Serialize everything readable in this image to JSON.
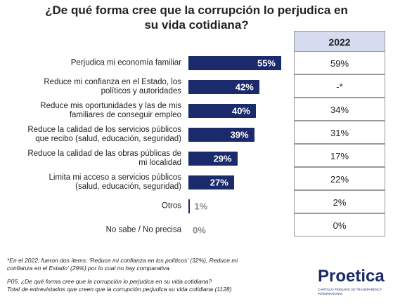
{
  "chart_data": {
    "type": "bar",
    "orientation": "horizontal",
    "title": "¿De qué forma cree que la corrupción lo perjudica en\nsu vida cotidiana?",
    "categories": [
      "Perjudica mi economía familiar",
      "Reduce mi confianza en el Estado, los\npolíticos y autoridades",
      "Reduce mis oportunidades y las de mis\nfamiliares de conseguir empleo",
      "Reduce la calidad de los servicios públicos\nque recibo (salud, educación, seguridad)",
      "Reduce la calidad de las obras públicas de\nmi localidad",
      "Limita mi acceso a servicios públicos\n(salud, educación, seguridad)",
      "Otros",
      "No sabe / No precisa"
    ],
    "values": [
      55,
      42,
      40,
      39,
      29,
      27,
      1,
      0
    ],
    "value_labels": [
      "55%",
      "42%",
      "40%",
      "39%",
      "29%",
      "27%",
      "1%",
      "0%"
    ],
    "color": "#1b2a6b"
  },
  "table": {
    "header": "2022",
    "cells": [
      "59%",
      "-*",
      "34%",
      "31%",
      "17%",
      "22%",
      "2%",
      "0%"
    ]
  },
  "notes": [
    "*En el 2022, fueron dos ítems: 'Reduce mi confianza en los políticos' (32%), Reduce mi\nconfianza en el Estado' (29%) por lo cual no hay comparativa.",
    "P05. ¿De qué forma cree que la corrupción lo perjudica en su vida cotidiana?\nTotal de entrevistados que creen que la corrupción perjudica su vida cotidiana (1128)"
  ],
  "logo": {
    "name": "Proetica",
    "tagline": "CAPÍTULO PERUANO DE TRANSPARENCY INTERNATIONAL"
  }
}
